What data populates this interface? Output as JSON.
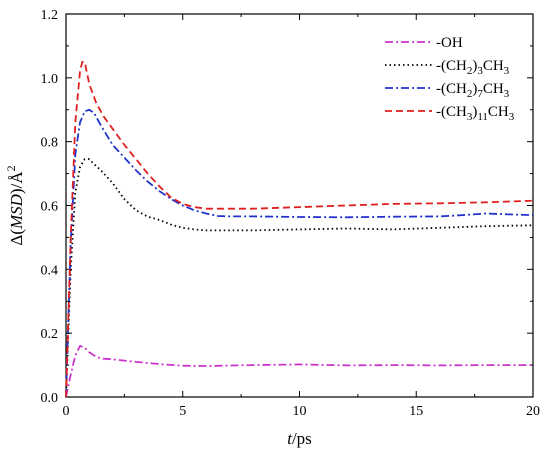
{
  "chart_data": {
    "type": "line",
    "title": "",
    "xlabel": {
      "italic": "t",
      "rest": "/ps"
    },
    "ylabel": {
      "prefix": "Δ",
      "italic": "MSD",
      "rest": ")/Å",
      "open": "(",
      "sup": "2"
    },
    "xlim": [
      0,
      20
    ],
    "ylim": [
      0,
      1.2
    ],
    "xticks": [
      "0",
      "5",
      "10",
      "15",
      "20"
    ],
    "yticks": [
      "0.0",
      "0.2",
      "0.4",
      "0.6",
      "0.8",
      "1.0",
      "1.2"
    ],
    "grid": false,
    "legend_position": "top-right",
    "series": [
      {
        "name": "-OH",
        "legend": {
          "base": "-OH"
        },
        "color": "#cc33cc",
        "dash": "dash-dot",
        "x": [
          0,
          0.2,
          0.4,
          0.6,
          0.8,
          1.0,
          1.3,
          1.6,
          2,
          3,
          4,
          5,
          6,
          8,
          10,
          12,
          14,
          16,
          18,
          20
        ],
        "y": [
          0,
          0.07,
          0.13,
          0.16,
          0.155,
          0.14,
          0.125,
          0.12,
          0.118,
          0.11,
          0.103,
          0.098,
          0.097,
          0.1,
          0.102,
          0.099,
          0.1,
          0.099,
          0.1,
          0.1
        ]
      },
      {
        "name": "-(CH2)3CH3",
        "legend": {
          "parts": [
            [
              "-(CH",
              ""
            ],
            [
              "2",
              "sub"
            ],
            [
              ")",
              ""
            ],
            [
              "3",
              "sub"
            ],
            [
              "CH",
              ""
            ],
            [
              "3",
              "sub"
            ]
          ]
        },
        "color": "#000000",
        "dash": "dot",
        "x": [
          0,
          0.2,
          0.4,
          0.6,
          0.8,
          1.0,
          1.2,
          1.5,
          2,
          2.5,
          3,
          3.5,
          4,
          4.5,
          5,
          5.5,
          6,
          8,
          10,
          12,
          14,
          16,
          18,
          20
        ],
        "y": [
          0,
          0.4,
          0.64,
          0.72,
          0.745,
          0.745,
          0.73,
          0.71,
          0.67,
          0.62,
          0.585,
          0.565,
          0.555,
          0.54,
          0.53,
          0.525,
          0.522,
          0.522,
          0.525,
          0.528,
          0.525,
          0.53,
          0.535,
          0.538
        ]
      },
      {
        "name": "-(CH2)7CH3",
        "legend": {
          "parts": [
            [
              "-(CH",
              ""
            ],
            [
              "2",
              "sub"
            ],
            [
              ")",
              ""
            ],
            [
              "7",
              "sub"
            ],
            [
              "CH",
              ""
            ],
            [
              "3",
              "sub"
            ]
          ]
        },
        "color": "#1f33cc",
        "dash": "dash-dot",
        "x": [
          0,
          0.2,
          0.4,
          0.6,
          0.8,
          1.0,
          1.2,
          1.5,
          2,
          2.5,
          3,
          3.5,
          4,
          4.5,
          5,
          5.5,
          6,
          6.5,
          7,
          8,
          10,
          12,
          14,
          16,
          17,
          18,
          19,
          20
        ],
        "y": [
          0,
          0.48,
          0.76,
          0.86,
          0.895,
          0.9,
          0.89,
          0.85,
          0.79,
          0.75,
          0.71,
          0.675,
          0.645,
          0.62,
          0.6,
          0.585,
          0.575,
          0.567,
          0.566,
          0.566,
          0.564,
          0.563,
          0.565,
          0.566,
          0.57,
          0.575,
          0.572,
          0.57
        ]
      },
      {
        "name": "-(CH3)11CH3",
        "legend": {
          "parts": [
            [
              "-(CH",
              ""
            ],
            [
              "3",
              "sub"
            ],
            [
              ")",
              ""
            ],
            [
              "11",
              "sub"
            ],
            [
              "CH",
              ""
            ],
            [
              "3",
              "sub"
            ]
          ]
        },
        "color": "#e01f1f",
        "dash": "dash",
        "x": [
          0,
          0.2,
          0.4,
          0.6,
          0.7,
          0.8,
          1.0,
          1.3,
          1.6,
          2,
          2.5,
          3,
          3.5,
          4,
          4.5,
          5,
          5.5,
          6,
          8,
          10,
          12,
          14,
          16,
          18,
          20
        ],
        "y": [
          0,
          0.5,
          0.86,
          1.02,
          1.05,
          1.05,
          0.98,
          0.92,
          0.88,
          0.84,
          0.79,
          0.745,
          0.7,
          0.66,
          0.625,
          0.605,
          0.595,
          0.59,
          0.59,
          0.595,
          0.6,
          0.605,
          0.607,
          0.61,
          0.615
        ]
      }
    ]
  }
}
